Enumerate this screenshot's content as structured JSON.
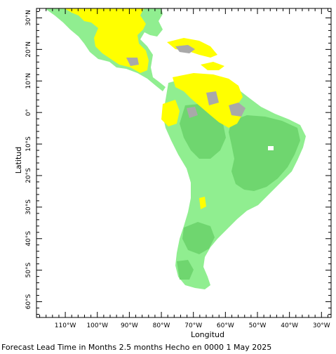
{
  "axes": {
    "y_title": "Latitud",
    "x_title": "Longitud",
    "x_ticks": [
      {
        "lon": -110,
        "label": "110°W"
      },
      {
        "lon": -100,
        "label": "100°W"
      },
      {
        "lon": -90,
        "label": "90°W"
      },
      {
        "lon": -80,
        "label": "80°W"
      },
      {
        "lon": -70,
        "label": "70°W"
      },
      {
        "lon": -60,
        "label": "60°W"
      },
      {
        "lon": -50,
        "label": "50°W"
      },
      {
        "lon": -40,
        "label": "40°W"
      },
      {
        "lon": -30,
        "label": "30°W"
      }
    ],
    "y_ticks": [
      {
        "lat": 30,
        "label": "30°N"
      },
      {
        "lat": 20,
        "label": "20°N"
      },
      {
        "lat": 10,
        "label": "10°N"
      },
      {
        "lat": 0,
        "label": "0°"
      },
      {
        "lat": -10,
        "label": "10°S"
      },
      {
        "lat": -20,
        "label": "20°S"
      },
      {
        "lat": -30,
        "label": "30°S"
      },
      {
        "lat": -40,
        "label": "40°S"
      },
      {
        "lat": -50,
        "label": "50°S"
      },
      {
        "lat": -60,
        "label": "60°S"
      }
    ],
    "lon_range": [
      -119,
      -27
    ],
    "lat_range": [
      -65,
      33
    ]
  },
  "caption": "Forecast Lead Time in Months 2.5 months Hecho en 0000 1 May 2025",
  "colors": {
    "light_green": "#90ee90",
    "medium_green": "#6fd66f",
    "yellow": "#ffff00",
    "gray": "#a9a9a9",
    "frame": "#000000"
  }
}
